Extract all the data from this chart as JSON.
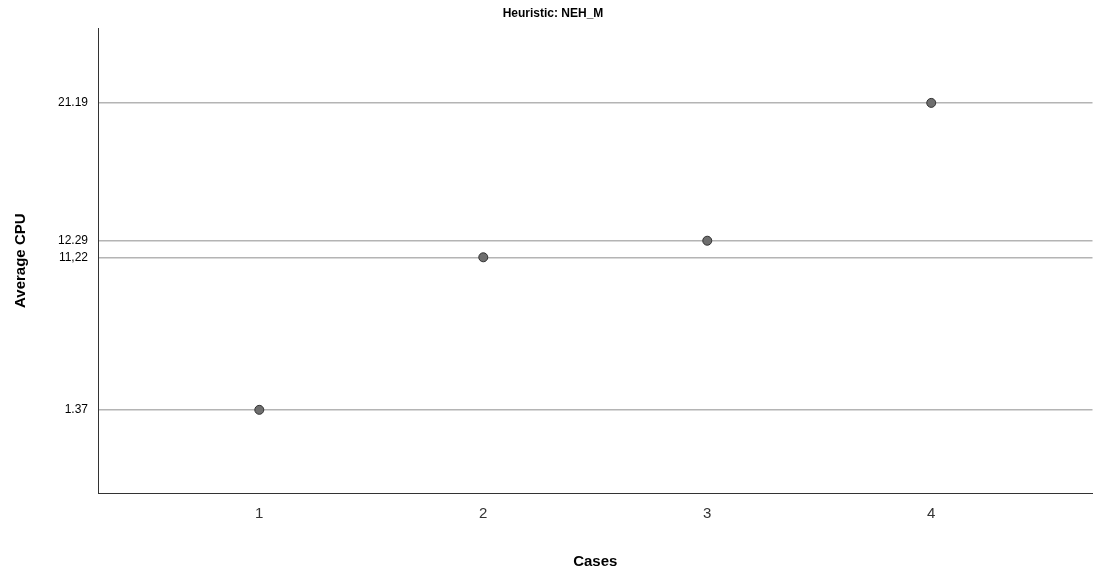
{
  "chart_data": {
    "type": "scatter",
    "title": "Heuristic: NEH_M",
    "xlabel": "Cases",
    "ylabel": "Average CPU",
    "categories": [
      "1",
      "2",
      "3",
      "4"
    ],
    "series": [
      {
        "color": "#6e6e6e",
        "values": [
          1.37,
          11.22,
          12.29,
          21.19
        ]
      }
    ],
    "ylim": [
      -4,
      26
    ],
    "yticks": [
      1.37,
      {
        "value": 11.22,
        "label": "11,22"
      },
      12.29,
      21.19
    ],
    "marker": "circle",
    "grid": "y",
    "legend": false
  }
}
